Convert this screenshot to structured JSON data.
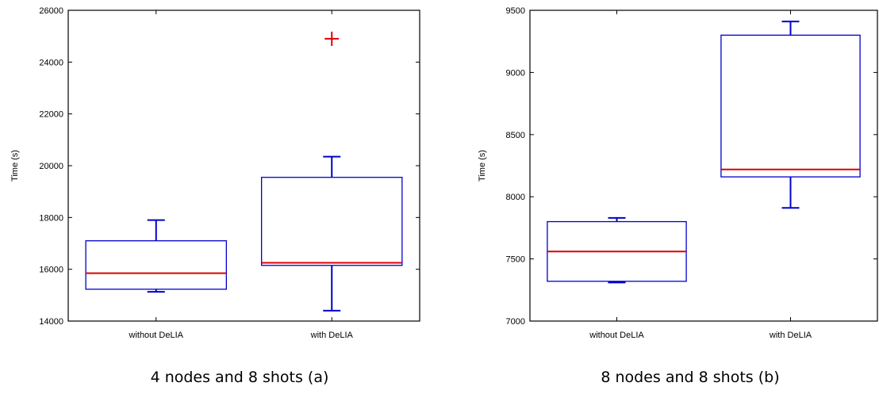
{
  "chart_data": [
    {
      "type": "box",
      "caption": "4 nodes and 8 shots (a)",
      "xlabel": "",
      "ylabel": "Time (s)",
      "ylim": [
        14000,
        26000
      ],
      "yticks": [
        14000,
        16000,
        18000,
        20000,
        22000,
        24000,
        26000
      ],
      "categories": [
        "without DeLIA",
        "with DeLIA"
      ],
      "boxes": [
        {
          "category": "without DeLIA",
          "whisker_low": 15130,
          "q1": 15230,
          "median": 15850,
          "q3": 17100,
          "whisker_high": 17900,
          "outliers": []
        },
        {
          "category": "with DeLIA",
          "whisker_low": 14400,
          "q1": 16150,
          "median": 16250,
          "q3": 19550,
          "whisker_high": 20350,
          "outliers": [
            24900
          ]
        }
      ],
      "colors": {
        "box": "#0000cc",
        "median": "#dd0000",
        "outlier": "#dd0000"
      }
    },
    {
      "type": "box",
      "caption": "8 nodes and 8 shots (b)",
      "xlabel": "",
      "ylabel": "Time (s)",
      "ylim": [
        7000,
        9500
      ],
      "yticks": [
        7000,
        7500,
        8000,
        8500,
        9000,
        9500
      ],
      "categories": [
        "without DeLIA",
        "with DeLIA"
      ],
      "boxes": [
        {
          "category": "without DeLIA",
          "whisker_low": 7310,
          "q1": 7320,
          "median": 7560,
          "q3": 7800,
          "whisker_high": 7830,
          "outliers": []
        },
        {
          "category": "with DeLIA",
          "whisker_low": 7910,
          "q1": 8160,
          "median": 8220,
          "q3": 9300,
          "whisker_high": 9410,
          "outliers": []
        }
      ],
      "colors": {
        "box": "#0000cc",
        "median": "#dd0000",
        "outlier": "#dd0000"
      }
    }
  ]
}
